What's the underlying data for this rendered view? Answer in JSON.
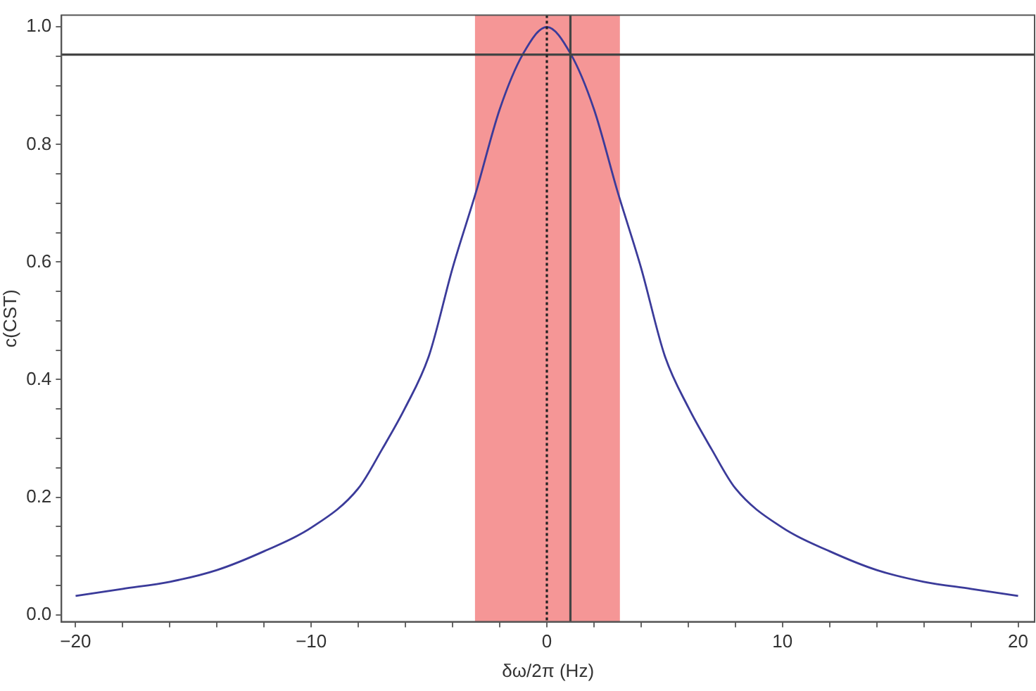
{
  "chart_data": {
    "type": "line",
    "xlabel": "δω/2π (Hz)",
    "ylabel": "c(CST)",
    "x": [
      -20,
      -18,
      -16,
      -14,
      -12,
      -10,
      -8,
      -7,
      -6,
      -5,
      -4,
      -3,
      -2,
      -1,
      0,
      1,
      2,
      3,
      4,
      5,
      6,
      7,
      8,
      10,
      12,
      14,
      16,
      18,
      20
    ],
    "series": [
      {
        "color": "#3b3b9a",
        "values": [
          0.032,
          0.044,
          0.056,
          0.076,
          0.108,
          0.148,
          0.215,
          0.281,
          0.353,
          0.441,
          0.59,
          0.72,
          0.86,
          0.955,
          1.0,
          0.955,
          0.86,
          0.72,
          0.59,
          0.441,
          0.353,
          0.281,
          0.215,
          0.148,
          0.108,
          0.076,
          0.056,
          0.044,
          0.032
        ]
      }
    ],
    "xlim": [
      -20.6,
      20.7
    ],
    "ylim": [
      -0.012,
      1.02
    ],
    "xticks": [
      {
        "value": -20,
        "label": "−20"
      },
      {
        "value": -18,
        "label": null
      },
      {
        "value": -16,
        "label": null
      },
      {
        "value": -14,
        "label": null
      },
      {
        "value": -12,
        "label": null
      },
      {
        "value": -10,
        "label": "−10"
      },
      {
        "value": -8,
        "label": null
      },
      {
        "value": -6,
        "label": null
      },
      {
        "value": -4,
        "label": null
      },
      {
        "value": -2,
        "label": null
      },
      0,
      {
        "value": 2,
        "label": null
      },
      {
        "value": 4,
        "label": null
      },
      {
        "value": 6,
        "label": null
      },
      {
        "value": 8,
        "label": null
      },
      10,
      {
        "value": 12,
        "label": null
      },
      {
        "value": 14,
        "label": null
      },
      {
        "value": 16,
        "label": null
      },
      {
        "value": 18,
        "label": null
      },
      20
    ],
    "yticks": [
      {
        "value": 0,
        "label": "0.0"
      },
      {
        "value": 0.05,
        "label": null
      },
      {
        "value": 0.1,
        "label": null
      },
      {
        "value": 0.15,
        "label": null
      },
      0.2,
      {
        "value": 0.25,
        "label": null
      },
      {
        "value": 0.3,
        "label": null
      },
      {
        "value": 0.35,
        "label": null
      },
      0.4,
      {
        "value": 0.45,
        "label": null
      },
      {
        "value": 0.5,
        "label": null
      },
      {
        "value": 0.55,
        "label": null
      },
      0.6,
      {
        "value": 0.65,
        "label": null
      },
      {
        "value": 0.7,
        "label": null
      },
      {
        "value": 0.75,
        "label": null
      },
      0.8,
      {
        "value": 0.85,
        "label": null
      },
      {
        "value": 0.9,
        "label": null
      },
      {
        "value": 0.95,
        "label": null
      },
      {
        "value": 1,
        "label": "1.0"
      }
    ],
    "bands": [
      {
        "axis": "x",
        "from": -3.05,
        "to": 3.1,
        "color": "#f59696"
      }
    ],
    "ref_lines": [
      {
        "axis": "y",
        "value": 0.953,
        "color": "#444444",
        "line_style": "solid"
      },
      {
        "axis": "x",
        "value": 0,
        "color": "#222222",
        "line_style": "dotted"
      },
      {
        "axis": "x",
        "value": 1,
        "color": "#444444",
        "line_style": "solid"
      }
    ],
    "grid": false,
    "legend": false,
    "marker": "none",
    "line_style": "solid"
  }
}
